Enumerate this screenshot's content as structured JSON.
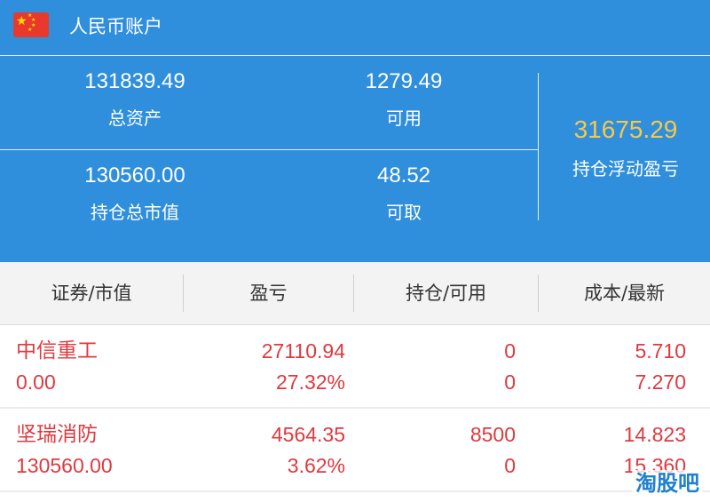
{
  "account": {
    "flag_icon": "china-flag-icon",
    "title": "人民币账户"
  },
  "summary": {
    "total_assets": {
      "value": "131839.49",
      "label": "总资产"
    },
    "available": {
      "value": "1279.49",
      "label": "可用"
    },
    "position_market_value": {
      "value": "130560.00",
      "label": "持仓总市值"
    },
    "withdrawable": {
      "value": "48.52",
      "label": "可取"
    },
    "floating_pnl": {
      "value": "31675.29",
      "label": "持仓浮动盈亏"
    }
  },
  "table": {
    "headers": [
      "证券/市值",
      "盈亏",
      "持仓/可用",
      "成本/最新"
    ],
    "rows": [
      {
        "name": "中信重工",
        "market_value": "0.00",
        "pnl": "27110.94",
        "pnl_pct": "27.32%",
        "position": "0",
        "available": "0",
        "cost": "5.710",
        "latest": "7.270"
      },
      {
        "name": "坚瑞消防",
        "market_value": "130560.00",
        "pnl": "4564.35",
        "pnl_pct": "3.62%",
        "position": "8500",
        "available": "0",
        "cost": "14.823",
        "latest": "15.360"
      }
    ]
  },
  "watermark": "淘股吧",
  "colors": {
    "panel_blue": "#2f8fdc",
    "pnl_gold": "#f7c84a",
    "gain_red": "#e0393e",
    "header_bg": "#f3f3f3"
  }
}
